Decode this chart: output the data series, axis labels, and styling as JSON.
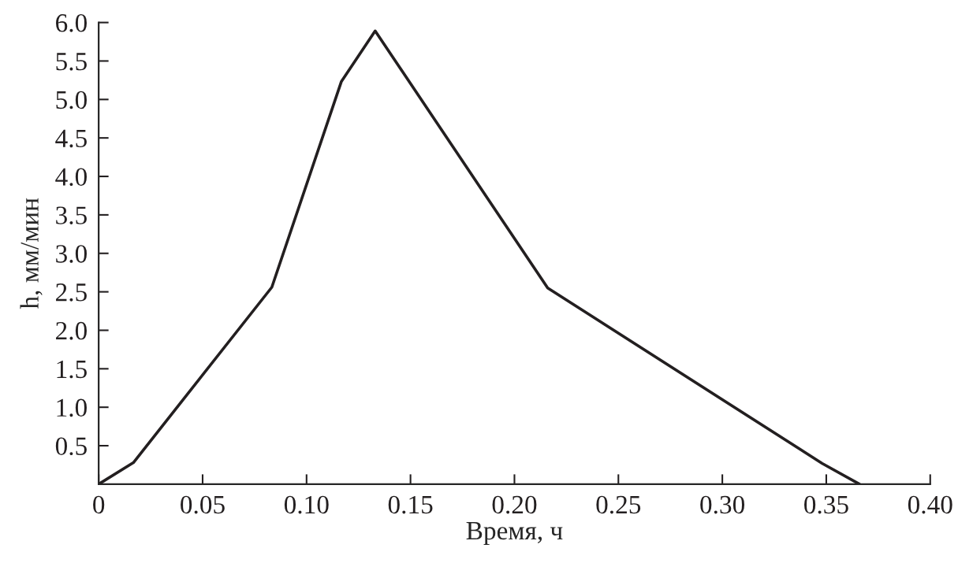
{
  "chart_data": {
    "type": "line",
    "xlabel": "Время, ч",
    "ylabel": "h, мм/мин",
    "x": [
      0,
      0.0167,
      0.0833,
      0.1167,
      0.133,
      0.216,
      0.348,
      0.366
    ],
    "series": [
      {
        "color": "#231f20",
        "values": [
          0,
          0.28,
          2.56,
          5.23,
          5.89,
          2.55,
          0.27,
          0
        ]
      }
    ],
    "xlim": [
      0,
      0.4
    ],
    "ylim": [
      0,
      6.0
    ],
    "xticks": [
      0,
      {
        "value": 0.05,
        "label": "0.05"
      },
      {
        "value": 0.1,
        "label": "0.10"
      },
      {
        "value": 0.15,
        "label": "0.15"
      },
      {
        "value": 0.2,
        "label": "0.20"
      },
      {
        "value": 0.25,
        "label": "0.25"
      },
      {
        "value": 0.3,
        "label": "0.30"
      },
      {
        "value": 0.35,
        "label": "0.35"
      },
      {
        "value": 0.4,
        "label": "0.40"
      }
    ],
    "yticks": [
      0.5,
      {
        "value": 1.0,
        "label": "1.0"
      },
      1.5,
      {
        "value": 2.0,
        "label": "2.0"
      },
      2.5,
      {
        "value": 3.0,
        "label": "3.0"
      },
      3.5,
      {
        "value": 4.0,
        "label": "4.0"
      },
      4.5,
      {
        "value": 5.0,
        "label": "5.0"
      },
      5.5,
      {
        "value": 6.0,
        "label": "6.0"
      }
    ],
    "grid": false,
    "legend": false,
    "marker": "none",
    "line_style": "solid"
  }
}
